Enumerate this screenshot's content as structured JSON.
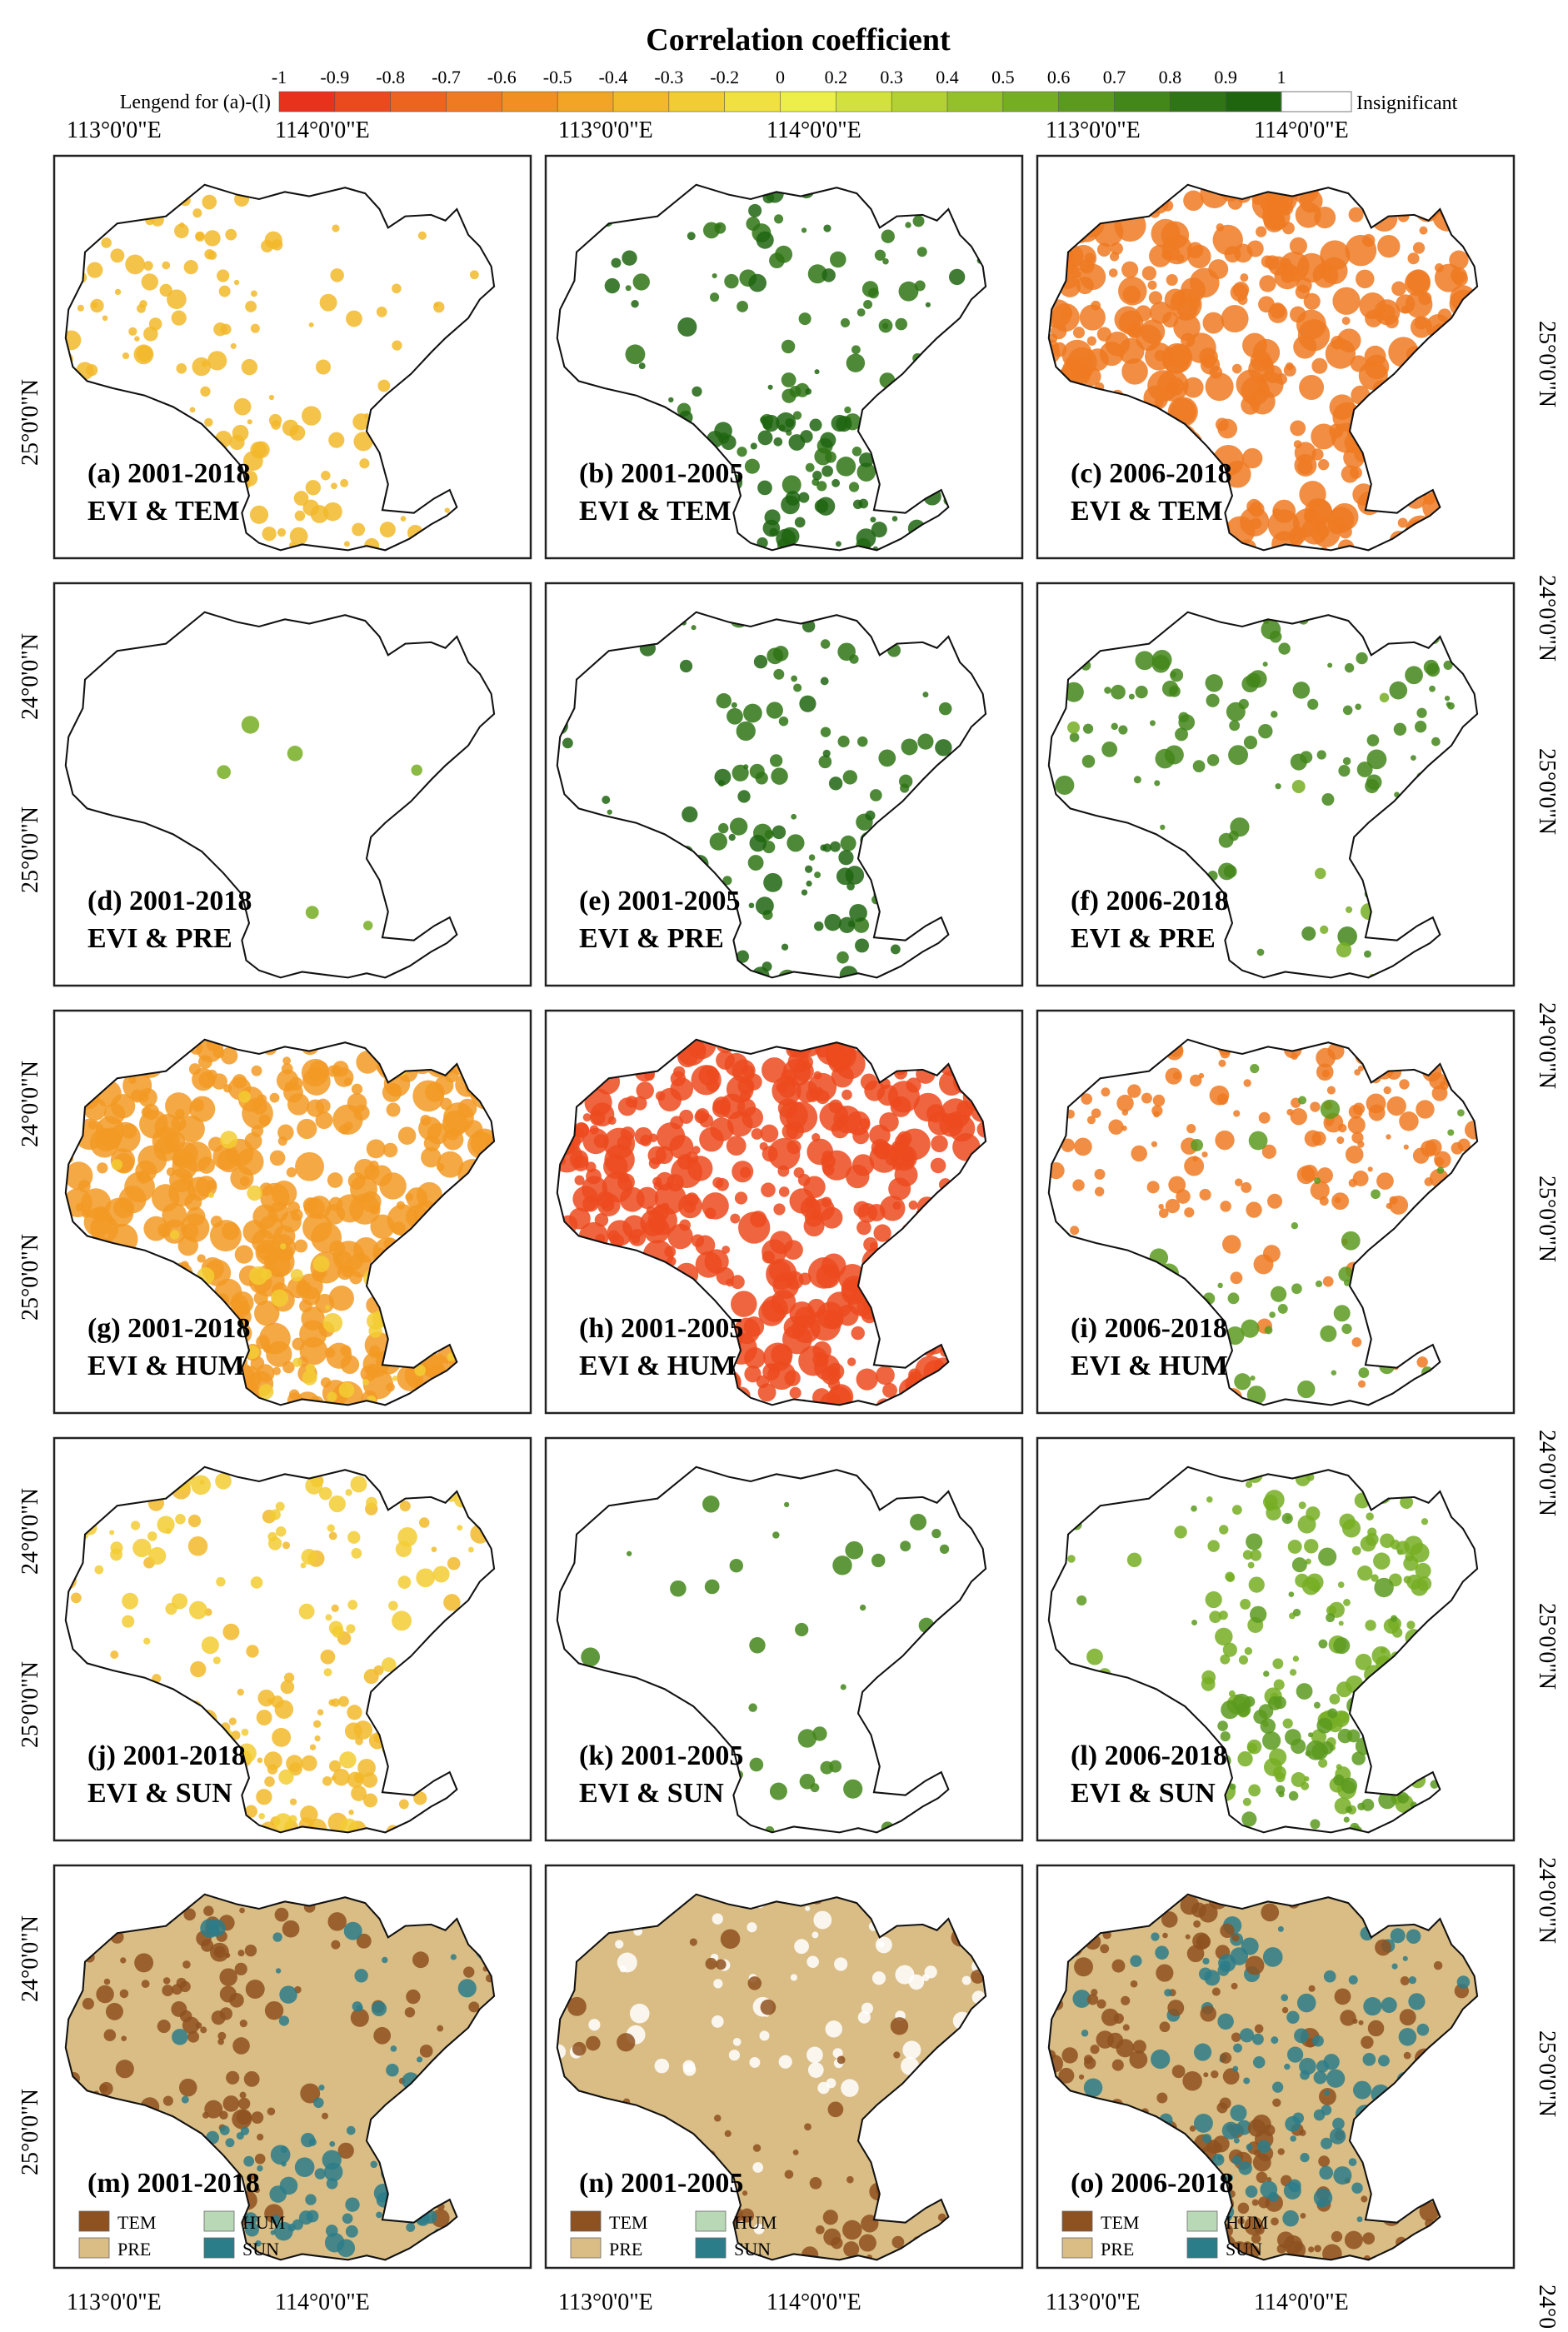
{
  "legend": {
    "title": "Correlation coefficient",
    "caption": "Lengend for (a)-(l)",
    "ticks": [
      "-1",
      "-0.9",
      "-0.8",
      "-0.7",
      "-0.6",
      "-0.5",
      "-0.4",
      "-0.3",
      "-0.2",
      "0",
      "0.2",
      "0.3",
      "0.4",
      "0.5",
      "0.6",
      "0.7",
      "0.8",
      "0.9",
      "1"
    ],
    "bin_colors": [
      "#e8321c",
      "#ea4a1e",
      "#ed6320",
      "#ef7a22",
      "#f18f23",
      "#f2a424",
      "#f2b92a",
      "#f2cc33",
      "#f0e040",
      "#ecef4a",
      "#d3e13e",
      "#b3d132",
      "#94c02a",
      "#76ae23",
      "#5b9a1f",
      "#43861a",
      "#2f7415",
      "#1f6510"
    ],
    "insignificant_label": "Insignificant"
  },
  "axes": {
    "lon_labels": [
      "113°0'0\"E",
      "114°0'0\"E"
    ],
    "lat_labels": [
      "25°0'0\"N",
      "24°0'0\"N"
    ]
  },
  "factor_legend": {
    "items": [
      {
        "name": "TEM",
        "color": "#8e5120"
      },
      {
        "name": "HUM",
        "color": "#b9d8b6"
      },
      {
        "name": "PRE",
        "color": "#d9bd85"
      },
      {
        "name": "SUN",
        "color": "#2b7d8a"
      }
    ]
  },
  "panels": [
    {
      "id": "a",
      "period": "(a) 2001-2018",
      "pair": "EVI & TEM",
      "pattern": [
        {
          "color": "#f2b92a",
          "density": 0.45,
          "weight": "west"
        },
        {
          "color": "#f2b92a",
          "density": 0.35,
          "weight": "south"
        }
      ]
    },
    {
      "id": "b",
      "period": "(b) 2001-2005",
      "pair": "EVI & TEM",
      "pattern": [
        {
          "color": "#2f7415",
          "density": 0.35,
          "weight": "center"
        },
        {
          "color": "#1f6510",
          "density": 0.6,
          "weight": "south"
        }
      ]
    },
    {
      "id": "c",
      "period": "(c) 2006-2018",
      "pair": "EVI & TEM",
      "pattern": [
        {
          "color": "#ef7a22",
          "density": 0.85,
          "weight": "all"
        }
      ]
    },
    {
      "id": "d",
      "period": "(d) 2001-2018",
      "pair": "EVI & PRE",
      "pattern": [
        {
          "color": "#76ae23",
          "density": 0.03,
          "weight": "center"
        }
      ]
    },
    {
      "id": "e",
      "period": "(e) 2001-2005",
      "pair": "EVI & PRE",
      "pattern": [
        {
          "color": "#2f7415",
          "density": 0.35,
          "weight": "center"
        },
        {
          "color": "#1f6510",
          "density": 0.4,
          "weight": "south"
        }
      ]
    },
    {
      "id": "f",
      "period": "(f) 2006-2018",
      "pair": "EVI & PRE",
      "pattern": [
        {
          "color": "#43861a",
          "density": 0.45,
          "weight": "north"
        },
        {
          "color": "#76ae23",
          "density": 0.1,
          "weight": "south"
        }
      ]
    },
    {
      "id": "g",
      "period": "(g) 2001-2018",
      "pair": "EVI & HUM",
      "pattern": [
        {
          "color": "#f29a24",
          "density": 0.9,
          "weight": "all"
        },
        {
          "color": "#f2cc33",
          "density": 0.25,
          "weight": "south"
        }
      ]
    },
    {
      "id": "h",
      "period": "(h) 2001-2005",
      "pair": "EVI & HUM",
      "pattern": [
        {
          "color": "#ec4a1e",
          "density": 1.0,
          "weight": "all"
        }
      ]
    },
    {
      "id": "i",
      "period": "(i) 2006-2018",
      "pair": "EVI & HUM",
      "pattern": [
        {
          "color": "#ef7a22",
          "density": 0.6,
          "weight": "north"
        },
        {
          "color": "#5b9a1f",
          "density": 0.45,
          "weight": "south"
        }
      ]
    },
    {
      "id": "j",
      "period": "(j) 2001-2018",
      "pair": "EVI & SUN",
      "pattern": [
        {
          "color": "#f2b92a",
          "density": 0.8,
          "weight": "south"
        },
        {
          "color": "#f2cc33",
          "density": 0.3,
          "weight": "north"
        }
      ]
    },
    {
      "id": "k",
      "period": "(k) 2001-2005",
      "pair": "EVI & SUN",
      "pattern": [
        {
          "color": "#43861a",
          "density": 0.12,
          "weight": "center"
        },
        {
          "color": "#43861a",
          "density": 0.1,
          "weight": "south"
        }
      ]
    },
    {
      "id": "l",
      "period": "(l) 2006-2018",
      "pair": "EVI & SUN",
      "pattern": [
        {
          "color": "#76ae23",
          "density": 0.7,
          "weight": "center"
        },
        {
          "color": "#5b9a1f",
          "density": 0.55,
          "weight": "south"
        }
      ]
    },
    {
      "id": "m",
      "period": "(m) 2001-2018",
      "pair": "",
      "base": "#d9bd85",
      "pattern": [
        {
          "color": "#8e5120",
          "density": 0.55,
          "weight": "west"
        },
        {
          "color": "#2b7d8a",
          "density": 0.5,
          "weight": "south"
        }
      ],
      "factor_legend": true
    },
    {
      "id": "n",
      "period": "(n) 2001-2005",
      "pair": "",
      "base": "#d9bd85",
      "pattern": [
        {
          "color": "#ffffff",
          "density": 0.25,
          "weight": "north"
        },
        {
          "color": "#8e5120",
          "density": 0.35,
          "weight": "south"
        }
      ],
      "factor_legend": true
    },
    {
      "id": "o",
      "period": "(o) 2006-2018",
      "pair": "",
      "base": "#d9bd85",
      "pattern": [
        {
          "color": "#8e5120",
          "density": 0.75,
          "weight": "south"
        },
        {
          "color": "#2b7d8a",
          "density": 0.55,
          "weight": "center"
        },
        {
          "color": "#8e5120",
          "density": 0.45,
          "weight": "west"
        }
      ],
      "factor_legend": true
    }
  ]
}
